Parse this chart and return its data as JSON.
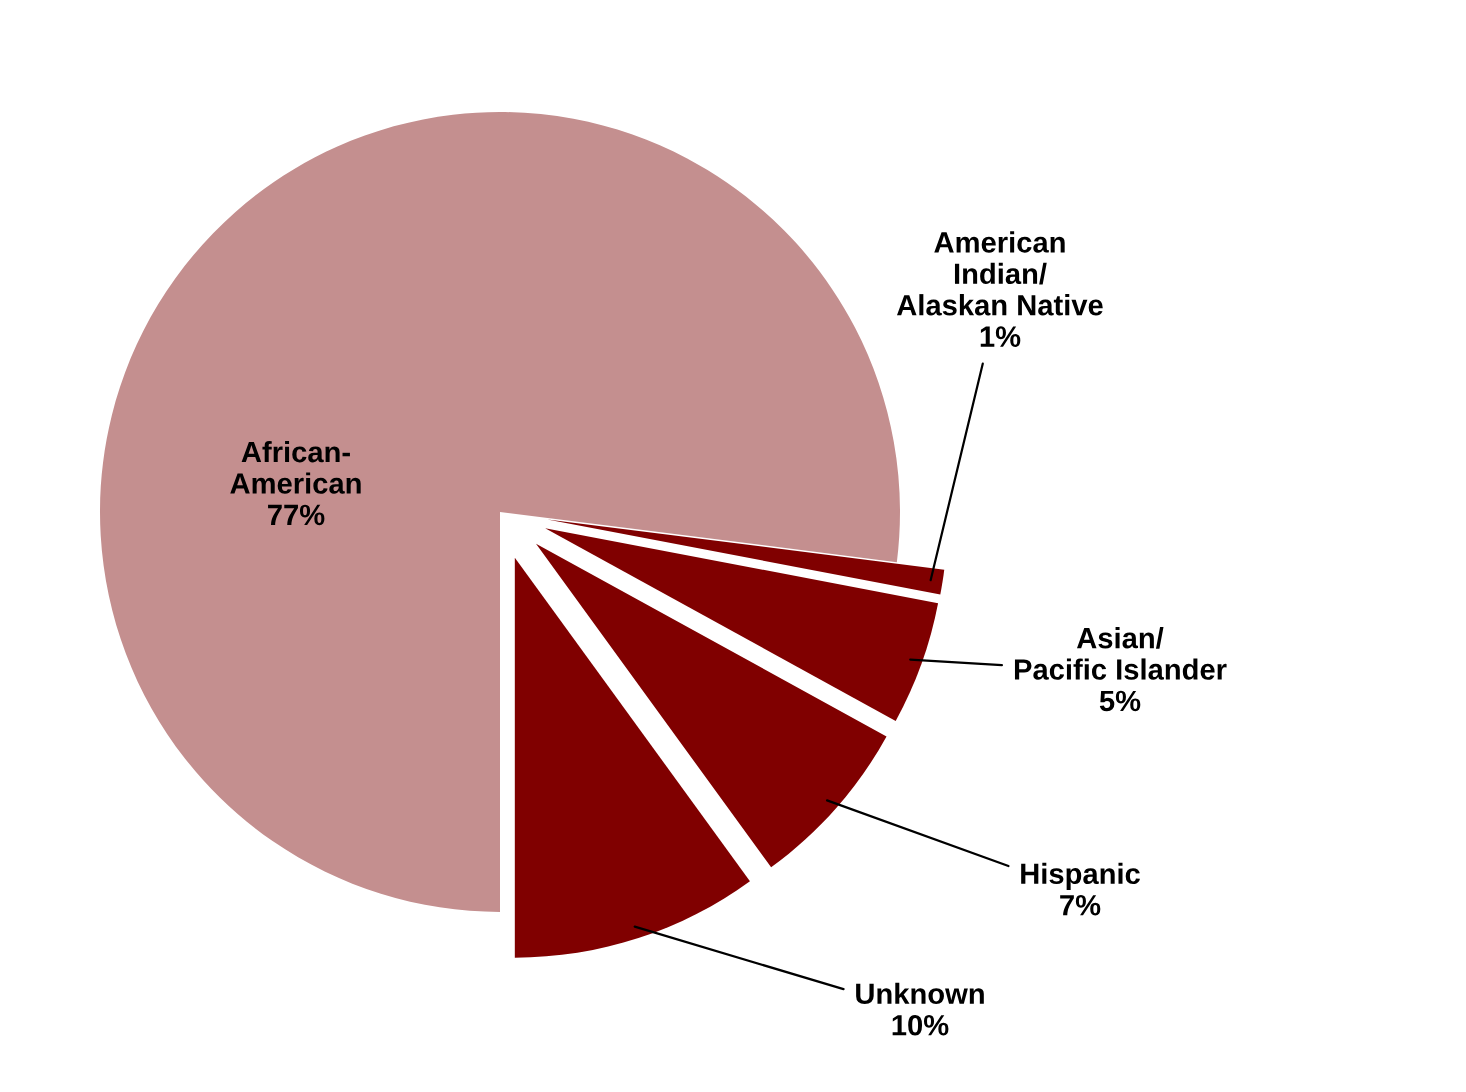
{
  "chart_data": {
    "type": "pie",
    "categories": [
      "African-\nAmerican",
      "American\nIndian/\nAlaskan Native",
      "Asian/\nPacific Islander",
      "Hispanic",
      "Unknown"
    ],
    "values": [
      77,
      1,
      5,
      7,
      10
    ],
    "value_labels": [
      "77%",
      "1%",
      "5%",
      "7%",
      "10%"
    ],
    "colors": [
      "#c48f8f",
      "#800000",
      "#800000",
      "#800000",
      "#800000"
    ],
    "legend": false
  }
}
